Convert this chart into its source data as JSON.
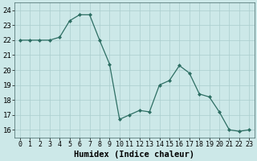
{
  "x": [
    0,
    1,
    2,
    3,
    4,
    5,
    6,
    7,
    8,
    9,
    10,
    11,
    12,
    13,
    14,
    15,
    16,
    17,
    18,
    19,
    20,
    21,
    22,
    23
  ],
  "y": [
    22,
    22,
    22,
    22,
    22.2,
    23.3,
    23.7,
    23.7,
    22,
    20.4,
    16.7,
    17.0,
    17.3,
    17.2,
    19.0,
    19.3,
    20.3,
    19.8,
    18.4,
    18.2,
    17.2,
    16.0,
    15.9,
    16.0
  ],
  "line_color": "#2d6e63",
  "marker_color": "#2d6e63",
  "bg_color": "#cce8e8",
  "grid_color": "#aacece",
  "xlabel": "Humidex (Indice chaleur)",
  "ylim": [
    15.5,
    24.5
  ],
  "xlim": [
    -0.5,
    23.5
  ],
  "yticks": [
    16,
    17,
    18,
    19,
    20,
    21,
    22,
    23,
    24
  ],
  "xtick_labels": [
    "0",
    "1",
    "2",
    "3",
    "4",
    "5",
    "6",
    "7",
    "8",
    "9",
    "10",
    "11",
    "12",
    "13",
    "14",
    "15",
    "16",
    "17",
    "18",
    "19",
    "20",
    "21",
    "22",
    "23"
  ],
  "xlabel_fontsize": 7.5,
  "tick_fontsize": 6.5
}
